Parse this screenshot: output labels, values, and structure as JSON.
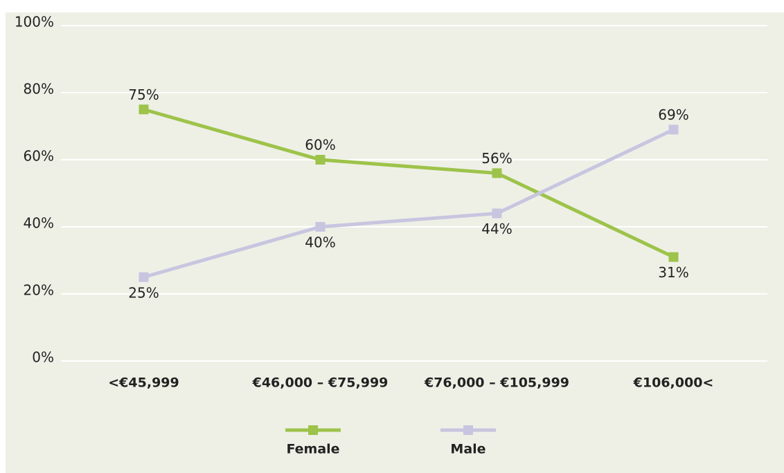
{
  "chart_data": {
    "type": "line",
    "categories": [
      "<€45,999",
      "€46,000 – €75,999",
      "€76,000 – €105,999",
      "€106,000<"
    ],
    "series": [
      {
        "name": "Female",
        "color": "#9dc34a",
        "values": [
          75,
          60,
          56,
          31
        ],
        "value_labels": [
          "75%",
          "60%",
          "56%",
          "31%"
        ]
      },
      {
        "name": "Male",
        "color": "#c8c5e0",
        "values": [
          25,
          40,
          44,
          69
        ],
        "value_labels": [
          "25%",
          "40%",
          "44%",
          "69%"
        ]
      }
    ],
    "ylim": [
      0,
      100
    ],
    "yticks": [
      {
        "value": 0,
        "label": "0%"
      },
      {
        "value": 20,
        "label": "20%"
      },
      {
        "value": 40,
        "label": "40%"
      },
      {
        "value": 60,
        "label": "60%"
      },
      {
        "value": 80,
        "label": "80%"
      },
      {
        "value": 100,
        "label": "100%"
      }
    ],
    "grid": true,
    "legend": "bottom"
  }
}
